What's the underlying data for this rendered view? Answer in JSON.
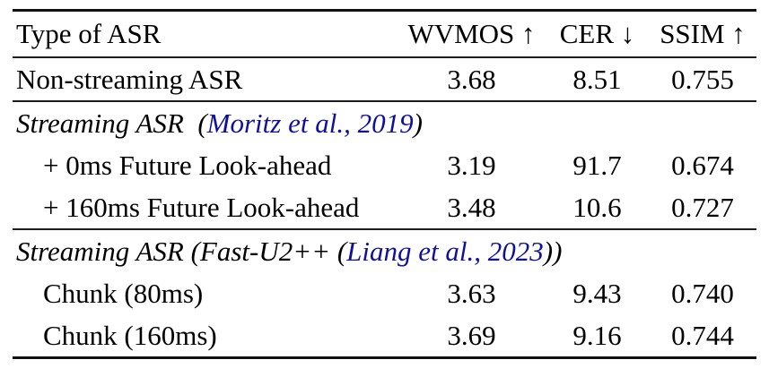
{
  "colors": {
    "background": "#ffffff",
    "text": "#000000",
    "rule": "#1c1c1c",
    "citation_blue": "#10109c"
  },
  "table": {
    "columns": [
      "Type of ASR",
      "WVMOS ↑",
      "CER ↓",
      "SSIM ↑"
    ],
    "rows": [
      {
        "label": "Non-streaming ASR",
        "wvmos": "3.68",
        "cer": "8.51",
        "ssim": "0.755"
      },
      {
        "prefix": "Streaming ASR  (",
        "citation": "Moritz et al., 2019",
        "suffix": ")"
      },
      {
        "label": "+ 0ms Future Look-ahead",
        "wvmos": "3.19",
        "cer": "91.7",
        "ssim": "0.674"
      },
      {
        "label": "+ 160ms Future Look-ahead",
        "wvmos": "3.48",
        "cer": "10.6",
        "ssim": "0.727"
      },
      {
        "prefix": "Streaming ASR (Fast-U2++ (",
        "citation": "Liang et al., 2023",
        "suffix": "))"
      },
      {
        "label": "Chunk (80ms)",
        "wvmos": "3.63",
        "cer": "9.43",
        "ssim": "0.740"
      },
      {
        "label": "Chunk (160ms)",
        "wvmos": "3.69",
        "cer": "9.16",
        "ssim": "0.744"
      }
    ]
  }
}
